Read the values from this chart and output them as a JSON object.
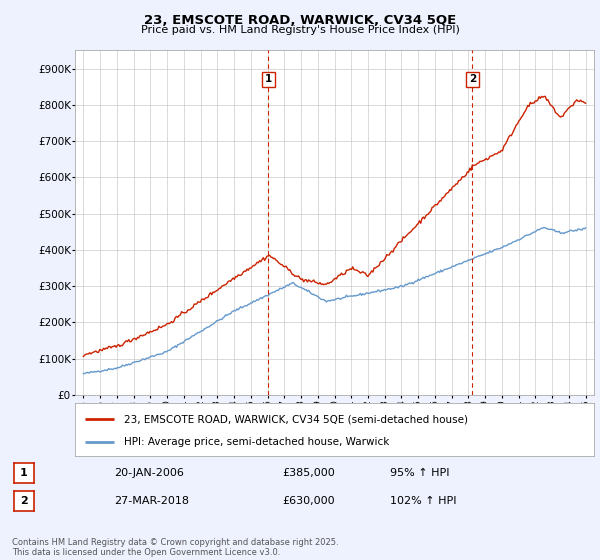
{
  "title_line1": "23, EMSCOTE ROAD, WARWICK, CV34 5QE",
  "title_line2": "Price paid vs. HM Land Registry's House Price Index (HPI)",
  "ylabel_ticks": [
    "£0",
    "£100K",
    "£200K",
    "£300K",
    "£400K",
    "£500K",
    "£600K",
    "£700K",
    "£800K",
    "£900K"
  ],
  "ytick_values": [
    0,
    100000,
    200000,
    300000,
    400000,
    500000,
    600000,
    700000,
    800000,
    900000
  ],
  "ylim": [
    0,
    950000
  ],
  "xlim_start": 1994.5,
  "xlim_end": 2025.5,
  "xtick_years": [
    1995,
    1996,
    1997,
    1998,
    1999,
    2000,
    2001,
    2002,
    2003,
    2004,
    2005,
    2006,
    2007,
    2008,
    2009,
    2010,
    2011,
    2012,
    2013,
    2014,
    2015,
    2016,
    2017,
    2018,
    2019,
    2020,
    2021,
    2022,
    2023,
    2024,
    2025
  ],
  "hpi_color": "#6699cc",
  "price_color": "#cc2200",
  "vline1_x": 2006.05,
  "vline2_x": 2018.23,
  "marker1_y": 870000,
  "marker2_y": 870000,
  "legend_label1": "23, EMSCOTE ROAD, WARWICK, CV34 5QE (semi-detached house)",
  "legend_label2": "HPI: Average price, semi-detached house, Warwick",
  "ann1_date": "20-JAN-2006",
  "ann1_price": "£385,000",
  "ann1_hpi": "95% ↑ HPI",
  "ann2_date": "27-MAR-2018",
  "ann2_price": "£630,000",
  "ann2_hpi": "102% ↑ HPI",
  "footer": "Contains HM Land Registry data © Crown copyright and database right 2025.\nThis data is licensed under the Open Government Licence v3.0.",
  "background_color": "#eef2ff",
  "plot_bg_color": "#ffffff",
  "grid_color": "#cccccc"
}
